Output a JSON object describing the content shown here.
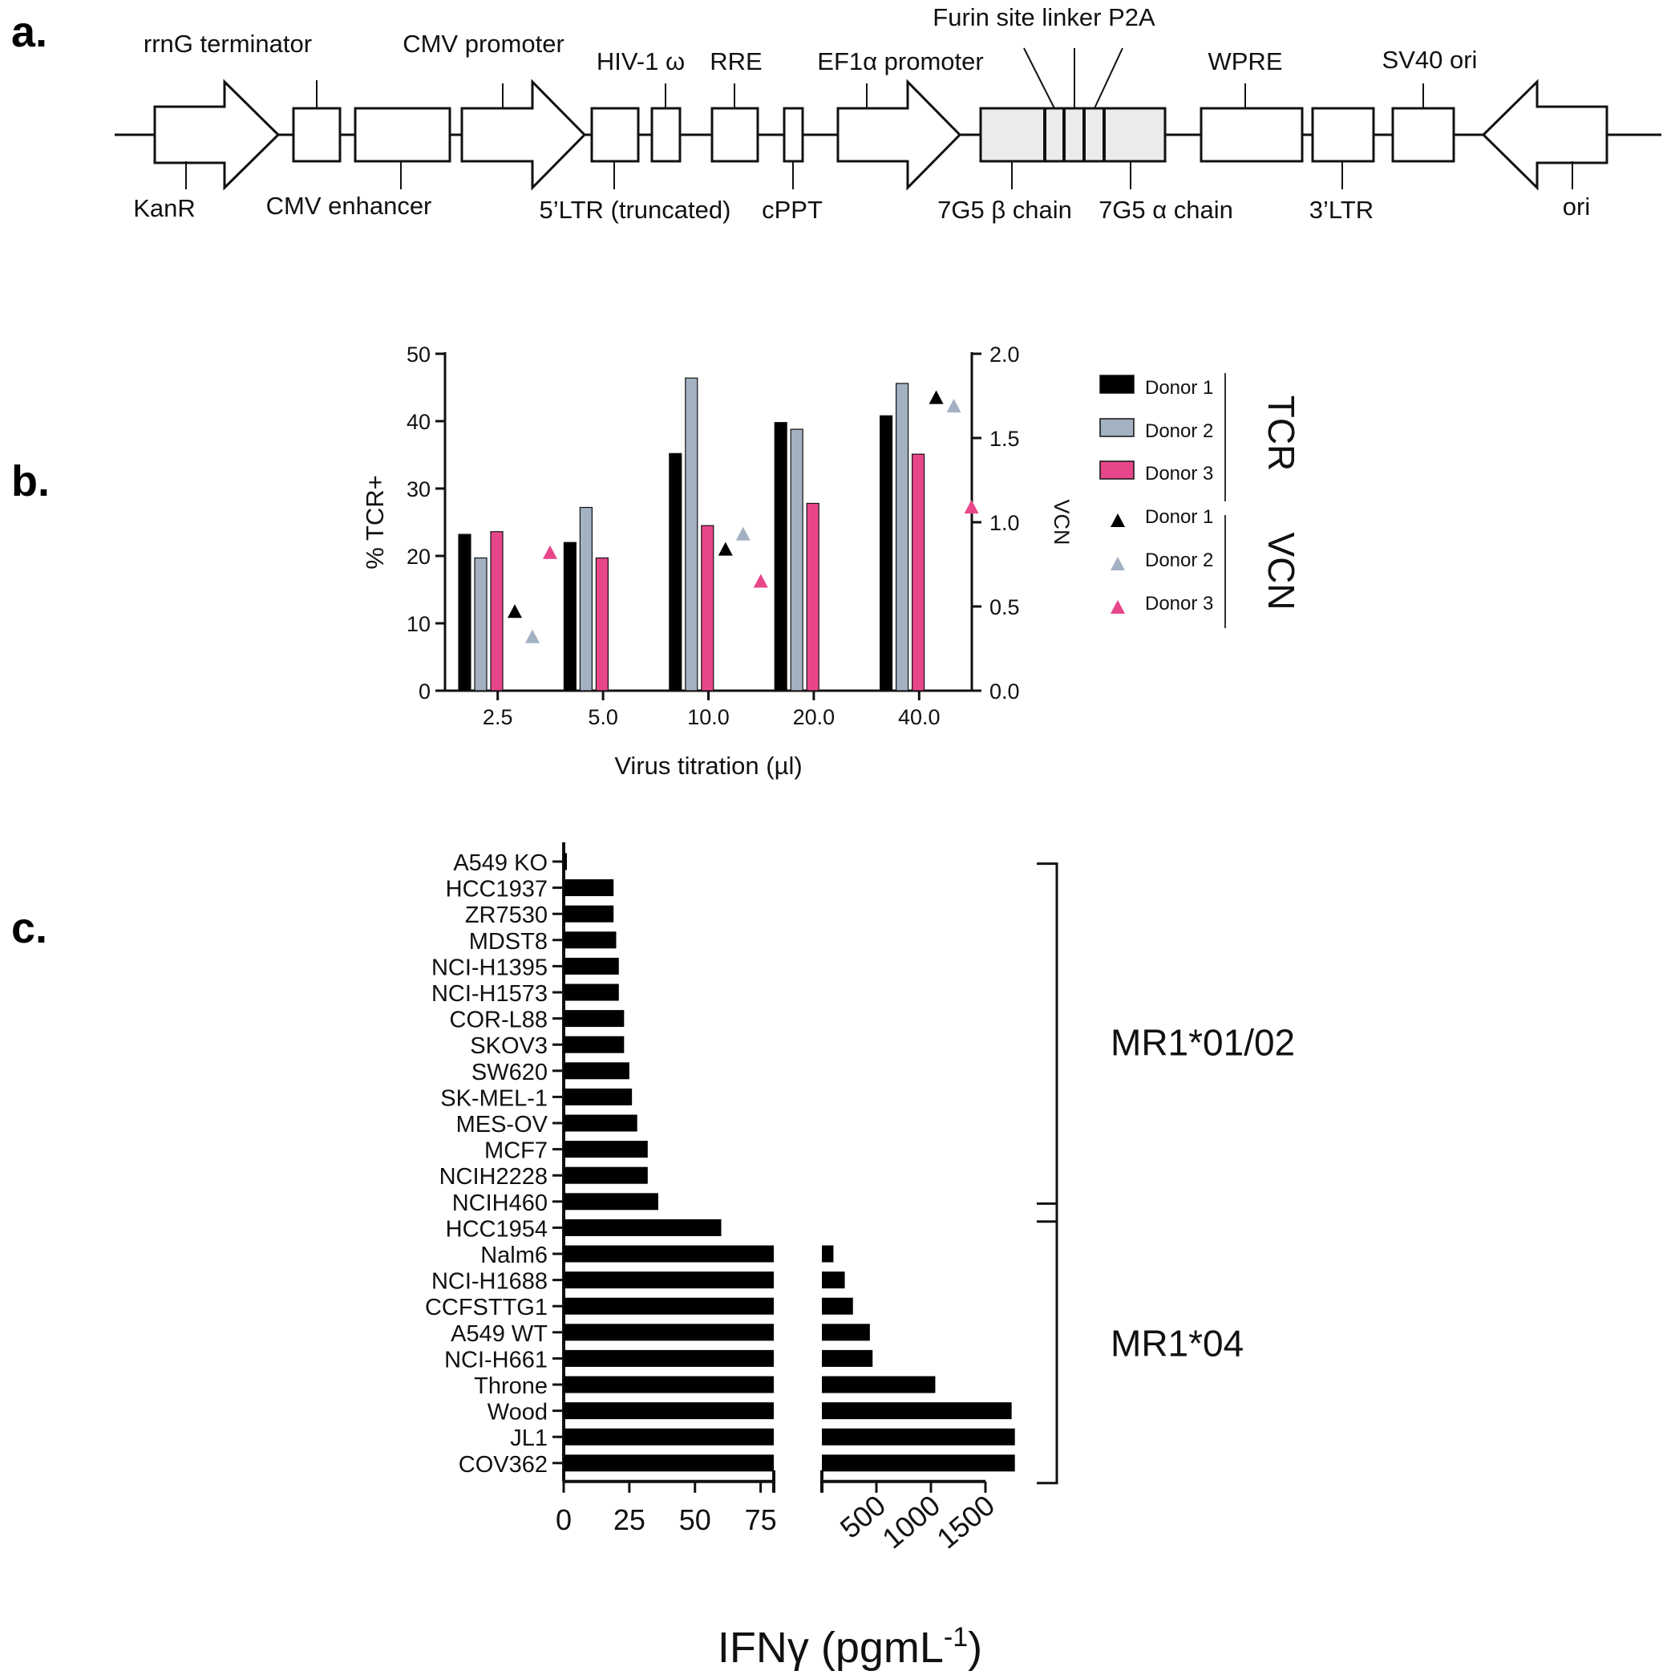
{
  "panels": {
    "a": "a.",
    "b": "b.",
    "c": "c."
  },
  "diagram": {
    "top_labels": {
      "rrng_terminator": "rrnG terminator",
      "cmv_promoter": "CMV promoter",
      "hiv1_omega": "HIV-1 ω",
      "rre": "RRE",
      "ef1a_promoter": "EF1α promoter",
      "furin": "Furin site linker P2A",
      "wpre": "WPRE",
      "sv40_ori": "SV40 ori"
    },
    "bottom_labels": {
      "kanr": "KanR",
      "cmv_enhancer": "CMV enhancer",
      "ltr5": "5’LTR (truncated)",
      "cppt": "cPPT",
      "beta_chain": "7G5 β chain",
      "alpha_chain": "7G5 α chain",
      "ltr3": "3’LTR",
      "ori": "ori"
    }
  },
  "chart_data": [
    {
      "type": "bar",
      "panel": "b",
      "title": "",
      "xlabel": "Virus titration (µl)",
      "ylabel": "% TCR+",
      "y2label": "VCN",
      "categories": [
        "2.5",
        "5.0",
        "10.0",
        "20.0",
        "40.0"
      ],
      "ylim": [
        0,
        50
      ],
      "y2lim": [
        0,
        2.0
      ],
      "yticks": [
        "0",
        "10",
        "20",
        "30",
        "40",
        "50"
      ],
      "y2ticks": [
        "0.0",
        "0.5",
        "1.0",
        "1.5",
        "2.0"
      ],
      "series": [
        {
          "name": "Donor 1",
          "group": "TCR",
          "color": "#000000",
          "values": [
            23.2,
            22.0,
            35.2,
            39.8,
            40.8
          ]
        },
        {
          "name": "Donor 2",
          "group": "TCR",
          "color": "#a3b1c2",
          "values": [
            19.7,
            27.2,
            46.4,
            38.8,
            45.6
          ]
        },
        {
          "name": "Donor 3",
          "group": "TCR",
          "color": "#e8468b",
          "values": [
            23.6,
            19.7,
            24.5,
            27.8,
            35.1
          ]
        }
      ],
      "vcn_series": [
        {
          "name": "Donor 1",
          "group": "VCN",
          "color": "#000000",
          "values": [
            0.47,
            null,
            0.84,
            null,
            1.74
          ]
        },
        {
          "name": "Donor 2",
          "group": "VCN",
          "color": "#a3b1c2",
          "values": [
            0.32,
            null,
            0.93,
            null,
            1.69
          ]
        },
        {
          "name": "Donor 3",
          "group": "VCN",
          "color": "#e8468b",
          "values": [
            0.82,
            null,
            0.65,
            null,
            1.09
          ]
        }
      ],
      "legend": {
        "position": "right",
        "groups": [
          "TCR",
          "VCN"
        ]
      }
    },
    {
      "type": "bar",
      "panel": "c",
      "orientation": "horizontal",
      "title": "",
      "xlabel_main": "IFNγ (pgmL",
      "xlabel_sup": "-1",
      "xlabel_end": ")",
      "axis_break": true,
      "segment1": {
        "range": [
          0,
          80
        ],
        "ticks": [
          "0",
          "25",
          "50",
          "75"
        ]
      },
      "segment2": {
        "range": [
          0,
          1500
        ],
        "ticks": [
          "500",
          "1000",
          "1500"
        ]
      },
      "categories": [
        "A549 KO",
        "HCC1937",
        "ZR7530",
        "MDST8",
        "NCI-H1395",
        "NCI-H1573",
        "COR-L88",
        "SKOV3",
        "SW620",
        "SK-MEL-1",
        "MES-OV",
        "MCF7",
        "NCIH2228",
        "NCIH460",
        "HCC1954",
        "Nalm6",
        "NCI-H1688",
        "CCFSTTG1",
        "A549 WT",
        "NCI-H661",
        "Throne",
        "Wood",
        "JL1",
        "COV362"
      ],
      "values": [
        1,
        19,
        19,
        20,
        21,
        21,
        23,
        23,
        25,
        26,
        28,
        32,
        32,
        36,
        60,
        106,
        210,
        285,
        440,
        465,
        1040,
        1740,
        1770,
        1770
      ],
      "groups": [
        {
          "name": "MR1*01/02",
          "from": "HCC1937",
          "to": "NCIH460"
        },
        {
          "name": "MR1*04",
          "from": "HCC1954",
          "to": "COV362"
        }
      ]
    }
  ]
}
